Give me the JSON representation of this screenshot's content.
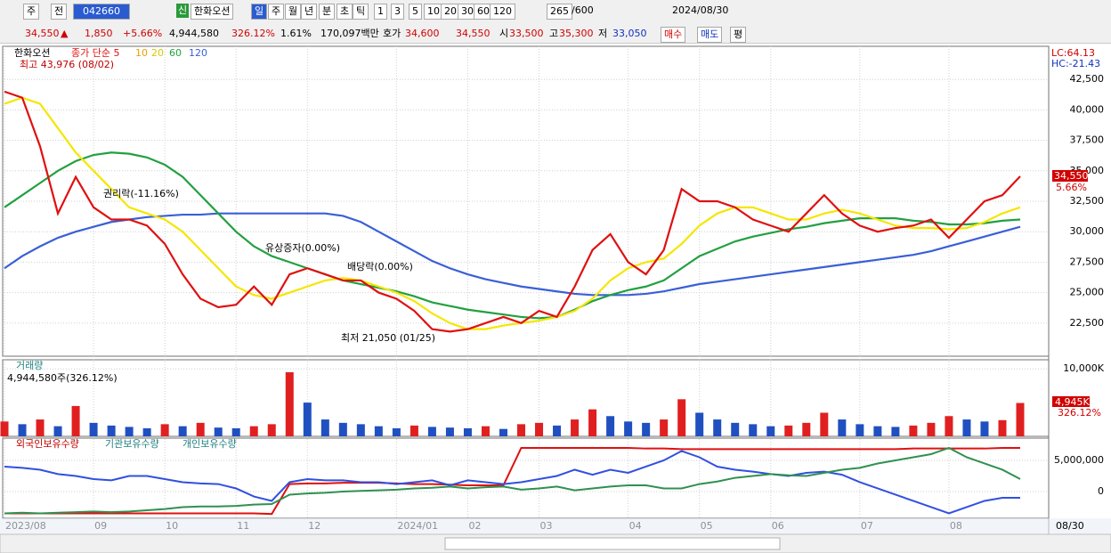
{
  "toolbar": {
    "row1": [
      "주",
      "전",
      "042660",
      "신",
      "한화오션",
      "일",
      "주",
      "월",
      "년",
      "분",
      "초",
      "틱",
      "1",
      "3",
      "5",
      "10",
      "20",
      "30",
      "60",
      "120",
      "265",
      "/600",
      "2024/08/30"
    ],
    "row2": [
      "34,550",
      "▲",
      "1,850",
      "+5.66%",
      "4,944,580",
      "326.12%",
      "1.61%",
      "170,097백만",
      "호가",
      "34,600",
      "34,550",
      "시",
      "33,500",
      "고",
      "35,300",
      "저",
      "33,050",
      "매수",
      "매도",
      "평"
    ]
  },
  "chart_data": [
    {
      "type": "line",
      "title": "한화오션",
      "legend": [
        "종가 단순 5",
        "10",
        "20",
        "60",
        "120"
      ],
      "annotations": [
        "최고 43,976 (08/02)",
        "권리락(-11.16%)",
        "유상증자(0.00%)",
        "배당락(0.00%)",
        "최저 21,050 (01/25)"
      ],
      "corner_labels": [
        "LC:64.13",
        "HC:-21.43"
      ],
      "last_change": "5.66%",
      "categories": [
        "2023/08",
        null,
        null,
        null,
        null,
        "09",
        null,
        null,
        null,
        "10",
        null,
        null,
        null,
        "11",
        null,
        null,
        null,
        "12",
        null,
        null,
        null,
        null,
        "2024/01",
        null,
        null,
        null,
        "02",
        null,
        null,
        null,
        "03",
        null,
        null,
        null,
        null,
        "04",
        null,
        null,
        null,
        "05",
        null,
        null,
        null,
        "06",
        null,
        null,
        null,
        null,
        "07",
        null,
        null,
        null,
        null,
        "08",
        null,
        null,
        null,
        null
      ],
      "end_label": "08/30",
      "ylim": [
        19780,
        45220
      ],
      "grid": true,
      "yticks": [
        {
          "value": 22500,
          "label": "22,500"
        },
        {
          "value": 25000,
          "label": "25,000"
        },
        {
          "value": 27500,
          "label": "27,500"
        },
        {
          "value": 30000,
          "label": "30,000"
        },
        {
          "value": 32500,
          "label": "32,500"
        },
        {
          "value": 35000,
          "label": "35,000"
        },
        {
          "value": 37500,
          "label": "37,500"
        },
        {
          "value": 40000,
          "label": "40,000"
        },
        {
          "value": 42500,
          "label": "42,500"
        }
      ],
      "series": [
        {
          "name": "120",
          "color": "#3a5fd6",
          "values": [
            27000,
            28000,
            28800,
            29500,
            30000,
            30400,
            30800,
            31000,
            31200,
            31300,
            31400,
            31400,
            31500,
            31500,
            31500,
            31500,
            31500,
            31500,
            31500,
            31300,
            30800,
            30000,
            29200,
            28400,
            27600,
            27000,
            26500,
            26100,
            25800,
            25500,
            25300,
            25100,
            24900,
            24800,
            24800,
            24800,
            24900,
            25100,
            25400,
            25700,
            25900,
            26100,
            26300,
            26500,
            26700,
            26900,
            27100,
            27300,
            27500,
            27700,
            27900,
            28100,
            28400,
            28800,
            29200,
            29600,
            30000,
            30400
          ]
        },
        {
          "name": "60",
          "color": "#22a040",
          "values": [
            32000,
            33000,
            34000,
            35000,
            35800,
            36300,
            36500,
            36400,
            36100,
            35500,
            34500,
            33000,
            31500,
            30000,
            28800,
            28000,
            27500,
            27000,
            26500,
            26000,
            25700,
            25400,
            25100,
            24700,
            24200,
            23900,
            23600,
            23400,
            23200,
            23000,
            22900,
            23000,
            23600,
            24300,
            24800,
            25200,
            25500,
            26000,
            27000,
            28000,
            28600,
            29200,
            29600,
            29900,
            30200,
            30400,
            30700,
            30900,
            31100,
            31100,
            31100,
            30900,
            30800,
            30600,
            30600,
            30700,
            30900,
            31000
          ]
        },
        {
          "name": "20",
          "color": "#f5e600",
          "values": [
            40500,
            41000,
            40500,
            38500,
            36500,
            35000,
            33500,
            32000,
            31500,
            31000,
            30000,
            28500,
            27000,
            25500,
            24800,
            24500,
            25000,
            25500,
            26000,
            26200,
            26000,
            25500,
            25000,
            24300,
            23300,
            22500,
            22000,
            22000,
            22300,
            22500,
            22700,
            23000,
            23500,
            24500,
            26000,
            27000,
            27500,
            27800,
            29000,
            30500,
            31500,
            32000,
            32000,
            31500,
            31000,
            31000,
            31500,
            31800,
            31500,
            31000,
            30500,
            30300,
            30300,
            30200,
            30300,
            30800,
            31500,
            32000
          ]
        },
        {
          "name": "종가 단순 5",
          "color": "#e01010",
          "values": [
            41500,
            41000,
            37000,
            31500,
            34500,
            32000,
            31000,
            31000,
            30500,
            29000,
            26500,
            24500,
            23800,
            24000,
            25500,
            24000,
            26500,
            27000,
            26500,
            26000,
            26000,
            25000,
            24500,
            23500,
            22000,
            21800,
            22000,
            22500,
            23000,
            22500,
            23500,
            23000,
            25500,
            28500,
            29800,
            27500,
            26500,
            28500,
            33500,
            32500,
            32500,
            32000,
            31000,
            30500,
            30000,
            31500,
            33000,
            31500,
            30500,
            30000,
            30300,
            30500,
            31000,
            29500,
            31000,
            32500,
            33000,
            34550
          ]
        }
      ],
      "value_labels": {
        "last": "34,550"
      }
    },
    {
      "type": "bar",
      "title": "거래량",
      "subtitle": "4,944,580주(326.12%)",
      "side_labels": [
        "4,945K",
        "326.12%"
      ],
      "ylim": [
        0,
        11350
      ],
      "yticks": [
        {
          "value": 10000,
          "label": "10,000K"
        }
      ],
      "values": [
        2200,
        1800,
        2500,
        1500,
        4500,
        2000,
        1600,
        1400,
        1200,
        1800,
        1500,
        2000,
        1300,
        1200,
        1500,
        1800,
        9500,
        5000,
        2500,
        2000,
        1800,
        1500,
        1200,
        1600,
        1400,
        1300,
        1200,
        1500,
        1100,
        1800,
        2000,
        1600,
        2500,
        4000,
        3000,
        2200,
        2000,
        2500,
        5500,
        3500,
        2500,
        2000,
        1800,
        1500,
        1600,
        2000,
        3500,
        2500,
        1800,
        1500,
        1400,
        1600,
        2000,
        3000,
        2500,
        2200,
        2400,
        4945
      ],
      "color_up": "#e02020",
      "color_down": "#2050c0"
    },
    {
      "type": "line",
      "ylim": [
        -4290000,
        8570000
      ],
      "yticks": [
        {
          "value": 5000000,
          "label": "5,000,000"
        },
        0
      ],
      "series": [
        {
          "name": "외국인보유수량",
          "color": "#e01010",
          "values": [
            -3500000,
            -3500000,
            -3500000,
            -3500000,
            -3500000,
            -3500000,
            -3500000,
            -3500000,
            -3500000,
            -3500000,
            -3500000,
            -3500000,
            -3500000,
            -3500000,
            -3500000,
            -3600000,
            1200000,
            1300000,
            1300000,
            1400000,
            1400000,
            1400000,
            1300000,
            1200000,
            1200000,
            1100000,
            1000000,
            1000000,
            1000000,
            7000000,
            7000000,
            7000000,
            7000000,
            7000000,
            7000000,
            7000000,
            6900000,
            6900000,
            6800000,
            6800000,
            6800000,
            6800000,
            6800000,
            6800000,
            6800000,
            6800000,
            6800000,
            6800000,
            6800000,
            6800000,
            6800000,
            6900000,
            6900000,
            6900000,
            6900000,
            6900000,
            7000000,
            7000000
          ]
        },
        {
          "name": "기관보유수량",
          "color": "#3050e0",
          "values": [
            4000000,
            3800000,
            3500000,
            2800000,
            2500000,
            2000000,
            1800000,
            2500000,
            2500000,
            2000000,
            1500000,
            1300000,
            1200000,
            500000,
            -800000,
            -1500000,
            1500000,
            2000000,
            1800000,
            1800000,
            1500000,
            1500000,
            1200000,
            1500000,
            1800000,
            1000000,
            1800000,
            1500000,
            1200000,
            1500000,
            2000000,
            2500000,
            3500000,
            2700000,
            3500000,
            3000000,
            4000000,
            5000000,
            6500000,
            5500000,
            4000000,
            3500000,
            3200000,
            2800000,
            2500000,
            3000000,
            3200000,
            2700000,
            1500000,
            500000,
            -500000,
            -1500000,
            -2500000,
            -3500000,
            -2500000,
            -1500000,
            -1000000,
            -1000000
          ]
        },
        {
          "name": "개인보유수량",
          "color": "#309050",
          "values": [
            -3500000,
            -3400000,
            -3500000,
            -3400000,
            -3300000,
            -3200000,
            -3300000,
            -3200000,
            -3000000,
            -2800000,
            -2500000,
            -2400000,
            -2400000,
            -2300000,
            -2100000,
            -2000000,
            -500000,
            -300000,
            -200000,
            0,
            100000,
            200000,
            300000,
            500000,
            600000,
            800000,
            500000,
            700000,
            800000,
            300000,
            500000,
            800000,
            200000,
            500000,
            800000,
            1000000,
            1000000,
            500000,
            500000,
            1200000,
            1600000,
            2200000,
            2500000,
            2800000,
            2600000,
            2500000,
            3000000,
            3500000,
            3800000,
            4500000,
            5000000,
            5500000,
            6000000,
            7000000,
            5500000,
            4500000,
            3500000,
            2000000
          ]
        }
      ]
    }
  ]
}
